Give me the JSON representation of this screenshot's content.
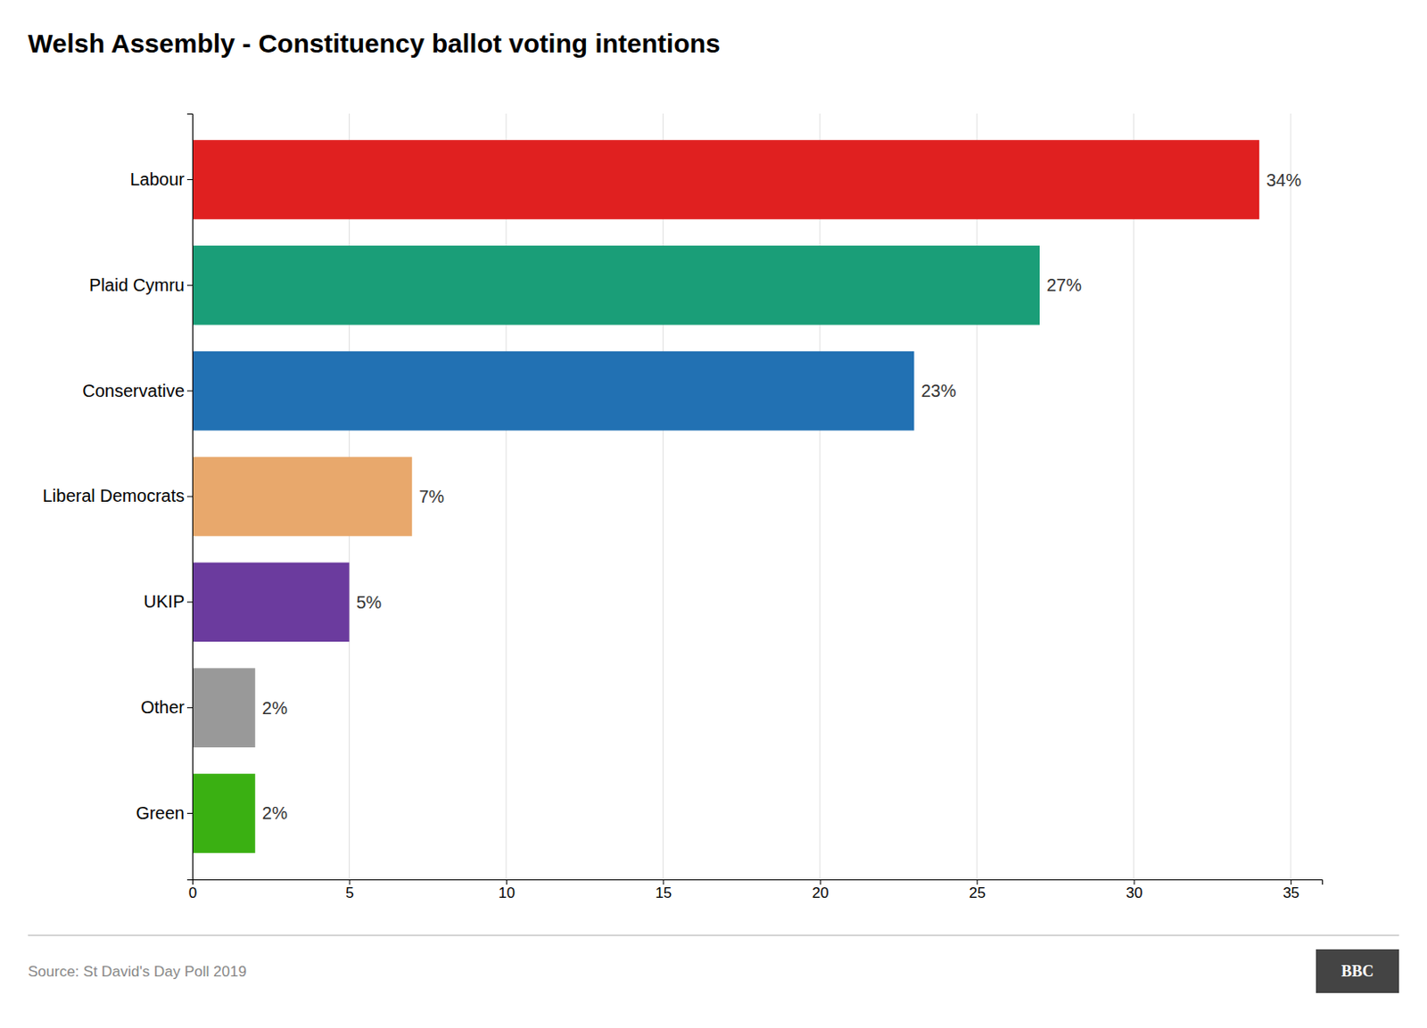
{
  "chart_data": {
    "type": "bar",
    "orientation": "horizontal",
    "title": "Welsh Assembly - Constituency ballot voting intentions",
    "categories": [
      "Labour",
      "Plaid Cymru",
      "Conservative",
      "Liberal Democrats",
      "UKIP",
      "Other",
      "Green"
    ],
    "values": [
      34,
      27,
      23,
      7,
      5,
      2,
      2
    ],
    "value_labels": [
      "34%",
      "27%",
      "23%",
      "7%",
      "5%",
      "2%",
      "2%"
    ],
    "colors": [
      "#e02020",
      "#1a9e78",
      "#2271b3",
      "#e8a86c",
      "#6b3b9e",
      "#999999",
      "#3ab012"
    ],
    "xlim": [
      0,
      36
    ],
    "xticks": [
      0,
      5,
      10,
      15,
      20,
      25,
      30,
      35
    ],
    "grid": true,
    "source": "Source: St David's Day Poll 2019",
    "annotations": [
      "BBC"
    ]
  }
}
